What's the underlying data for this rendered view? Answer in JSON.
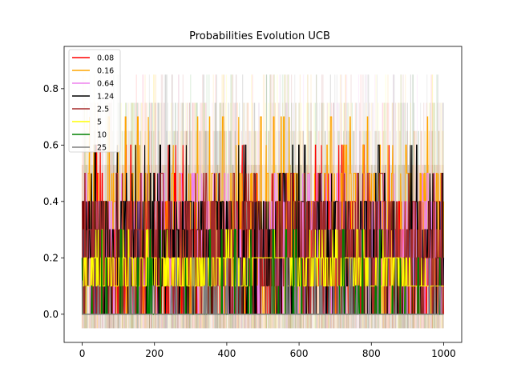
{
  "chart_data": {
    "type": "line",
    "title": "Probabilities Evolution UCB",
    "xlabel": "",
    "ylabel": "",
    "xlim": [
      -50,
      1050
    ],
    "ylim": [
      -0.1,
      0.95
    ],
    "xticks": [
      0,
      200,
      400,
      600,
      800,
      1000
    ],
    "xtick_labels": [
      "0",
      "200",
      "400",
      "600",
      "800",
      "1000"
    ],
    "yticks": [
      0.0,
      0.2,
      0.4,
      0.6,
      0.8
    ],
    "ytick_labels": [
      "0.0",
      "0.2",
      "0.4",
      "0.6",
      "0.8"
    ],
    "grid": false,
    "legend_position": "top-left",
    "x_range": [
      0,
      1000
    ],
    "series": [
      {
        "name": "0.08",
        "color": "#ff0000",
        "levels": [
          0.0,
          0.1,
          0.2,
          0.3,
          0.4
        ],
        "spikes": [
          0.5,
          0.6
        ],
        "early_value": 0.4
      },
      {
        "name": "0.16",
        "color": "#ffa500",
        "levels": [
          0.0,
          0.1,
          0.2,
          0.3,
          0.4,
          0.5
        ],
        "spikes": [
          0.6,
          0.7
        ],
        "early_value": 0.3
      },
      {
        "name": "0.64",
        "color": "#ee82ee",
        "levels": [
          0.0,
          0.1,
          0.2,
          0.3,
          0.4
        ],
        "spikes": [
          0.5
        ],
        "early_value": 0.3
      },
      {
        "name": "1.24",
        "color": "#000000",
        "levels": [
          0.0,
          0.1,
          0.2,
          0.3,
          0.4
        ],
        "spikes": [
          0.5,
          0.6
        ],
        "early_value": 0.4
      },
      {
        "name": "2.5",
        "color": "#a52a2a",
        "levels": [
          0.0,
          0.1,
          0.2,
          0.3,
          0.4
        ],
        "spikes": [
          0.5
        ],
        "early_value": 0.2
      },
      {
        "name": "5",
        "color": "#ffff00",
        "levels": [
          0.1,
          0.2
        ],
        "spikes": [
          0.3
        ],
        "plateaus": [
          [
            460,
            560,
            0.2
          ],
          [
            910,
            1000,
            0.1
          ]
        ],
        "early_value": 0.1
      },
      {
        "name": "10",
        "color": "#008000",
        "levels": [
          0.0
        ],
        "spikes": [
          0.1,
          0.2,
          0.3
        ],
        "early_value": 0.2
      },
      {
        "name": "25",
        "color": "#808080",
        "levels": [
          0.0
        ],
        "spikes": [
          0.1,
          0.2
        ],
        "early_value": 0.12
      }
    ],
    "background_spike_levels": [
      0.53,
      0.65,
      0.75,
      0.85,
      0.93
    ]
  }
}
